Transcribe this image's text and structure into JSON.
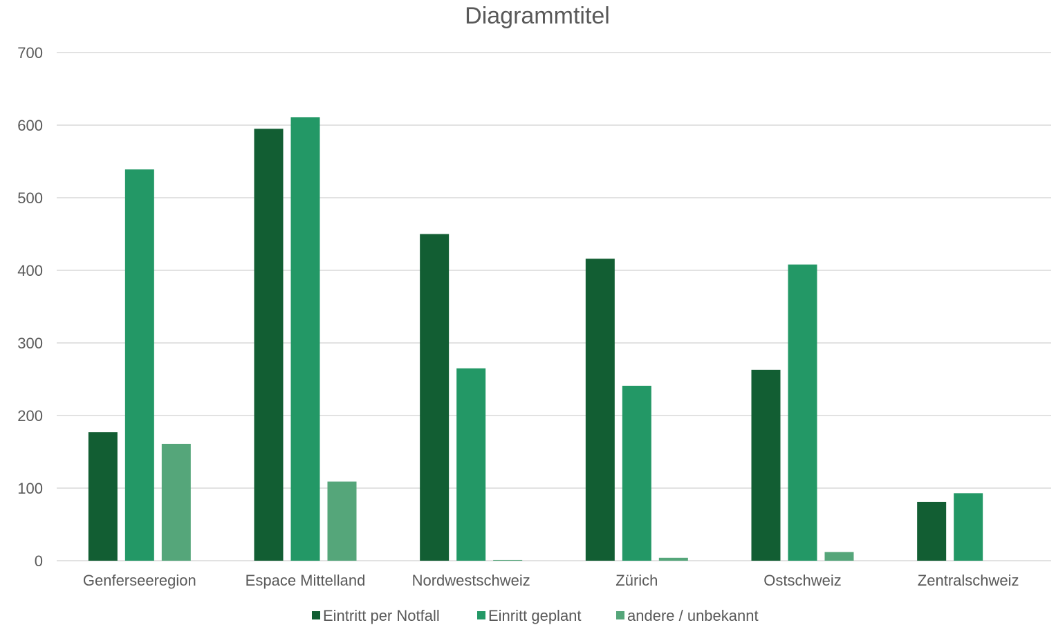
{
  "chart_data": {
    "type": "bar",
    "title": "Diagrammtitel",
    "xlabel": "",
    "ylabel": "",
    "ylim": [
      0,
      700
    ],
    "yticks": [
      0,
      100,
      200,
      300,
      400,
      500,
      600,
      700
    ],
    "grid": true,
    "legend_position": "bottom",
    "categories": [
      "Genferseeregion",
      "Espace Mittelland",
      "Nordwestschweiz",
      "Zürich",
      "Ostschweiz",
      "Zentralschweiz"
    ],
    "series": [
      {
        "name": "Eintritt per Notfall",
        "color": "#125e33",
        "values": [
          177,
          595,
          450,
          416,
          263,
          81
        ]
      },
      {
        "name": "Einritt geplant",
        "color": "#239866",
        "values": [
          539,
          611,
          265,
          241,
          408,
          93
        ]
      },
      {
        "name": "andere / unbekannt",
        "color": "#55a67a",
        "values": [
          161,
          109,
          1,
          4,
          12,
          0
        ]
      }
    ]
  }
}
